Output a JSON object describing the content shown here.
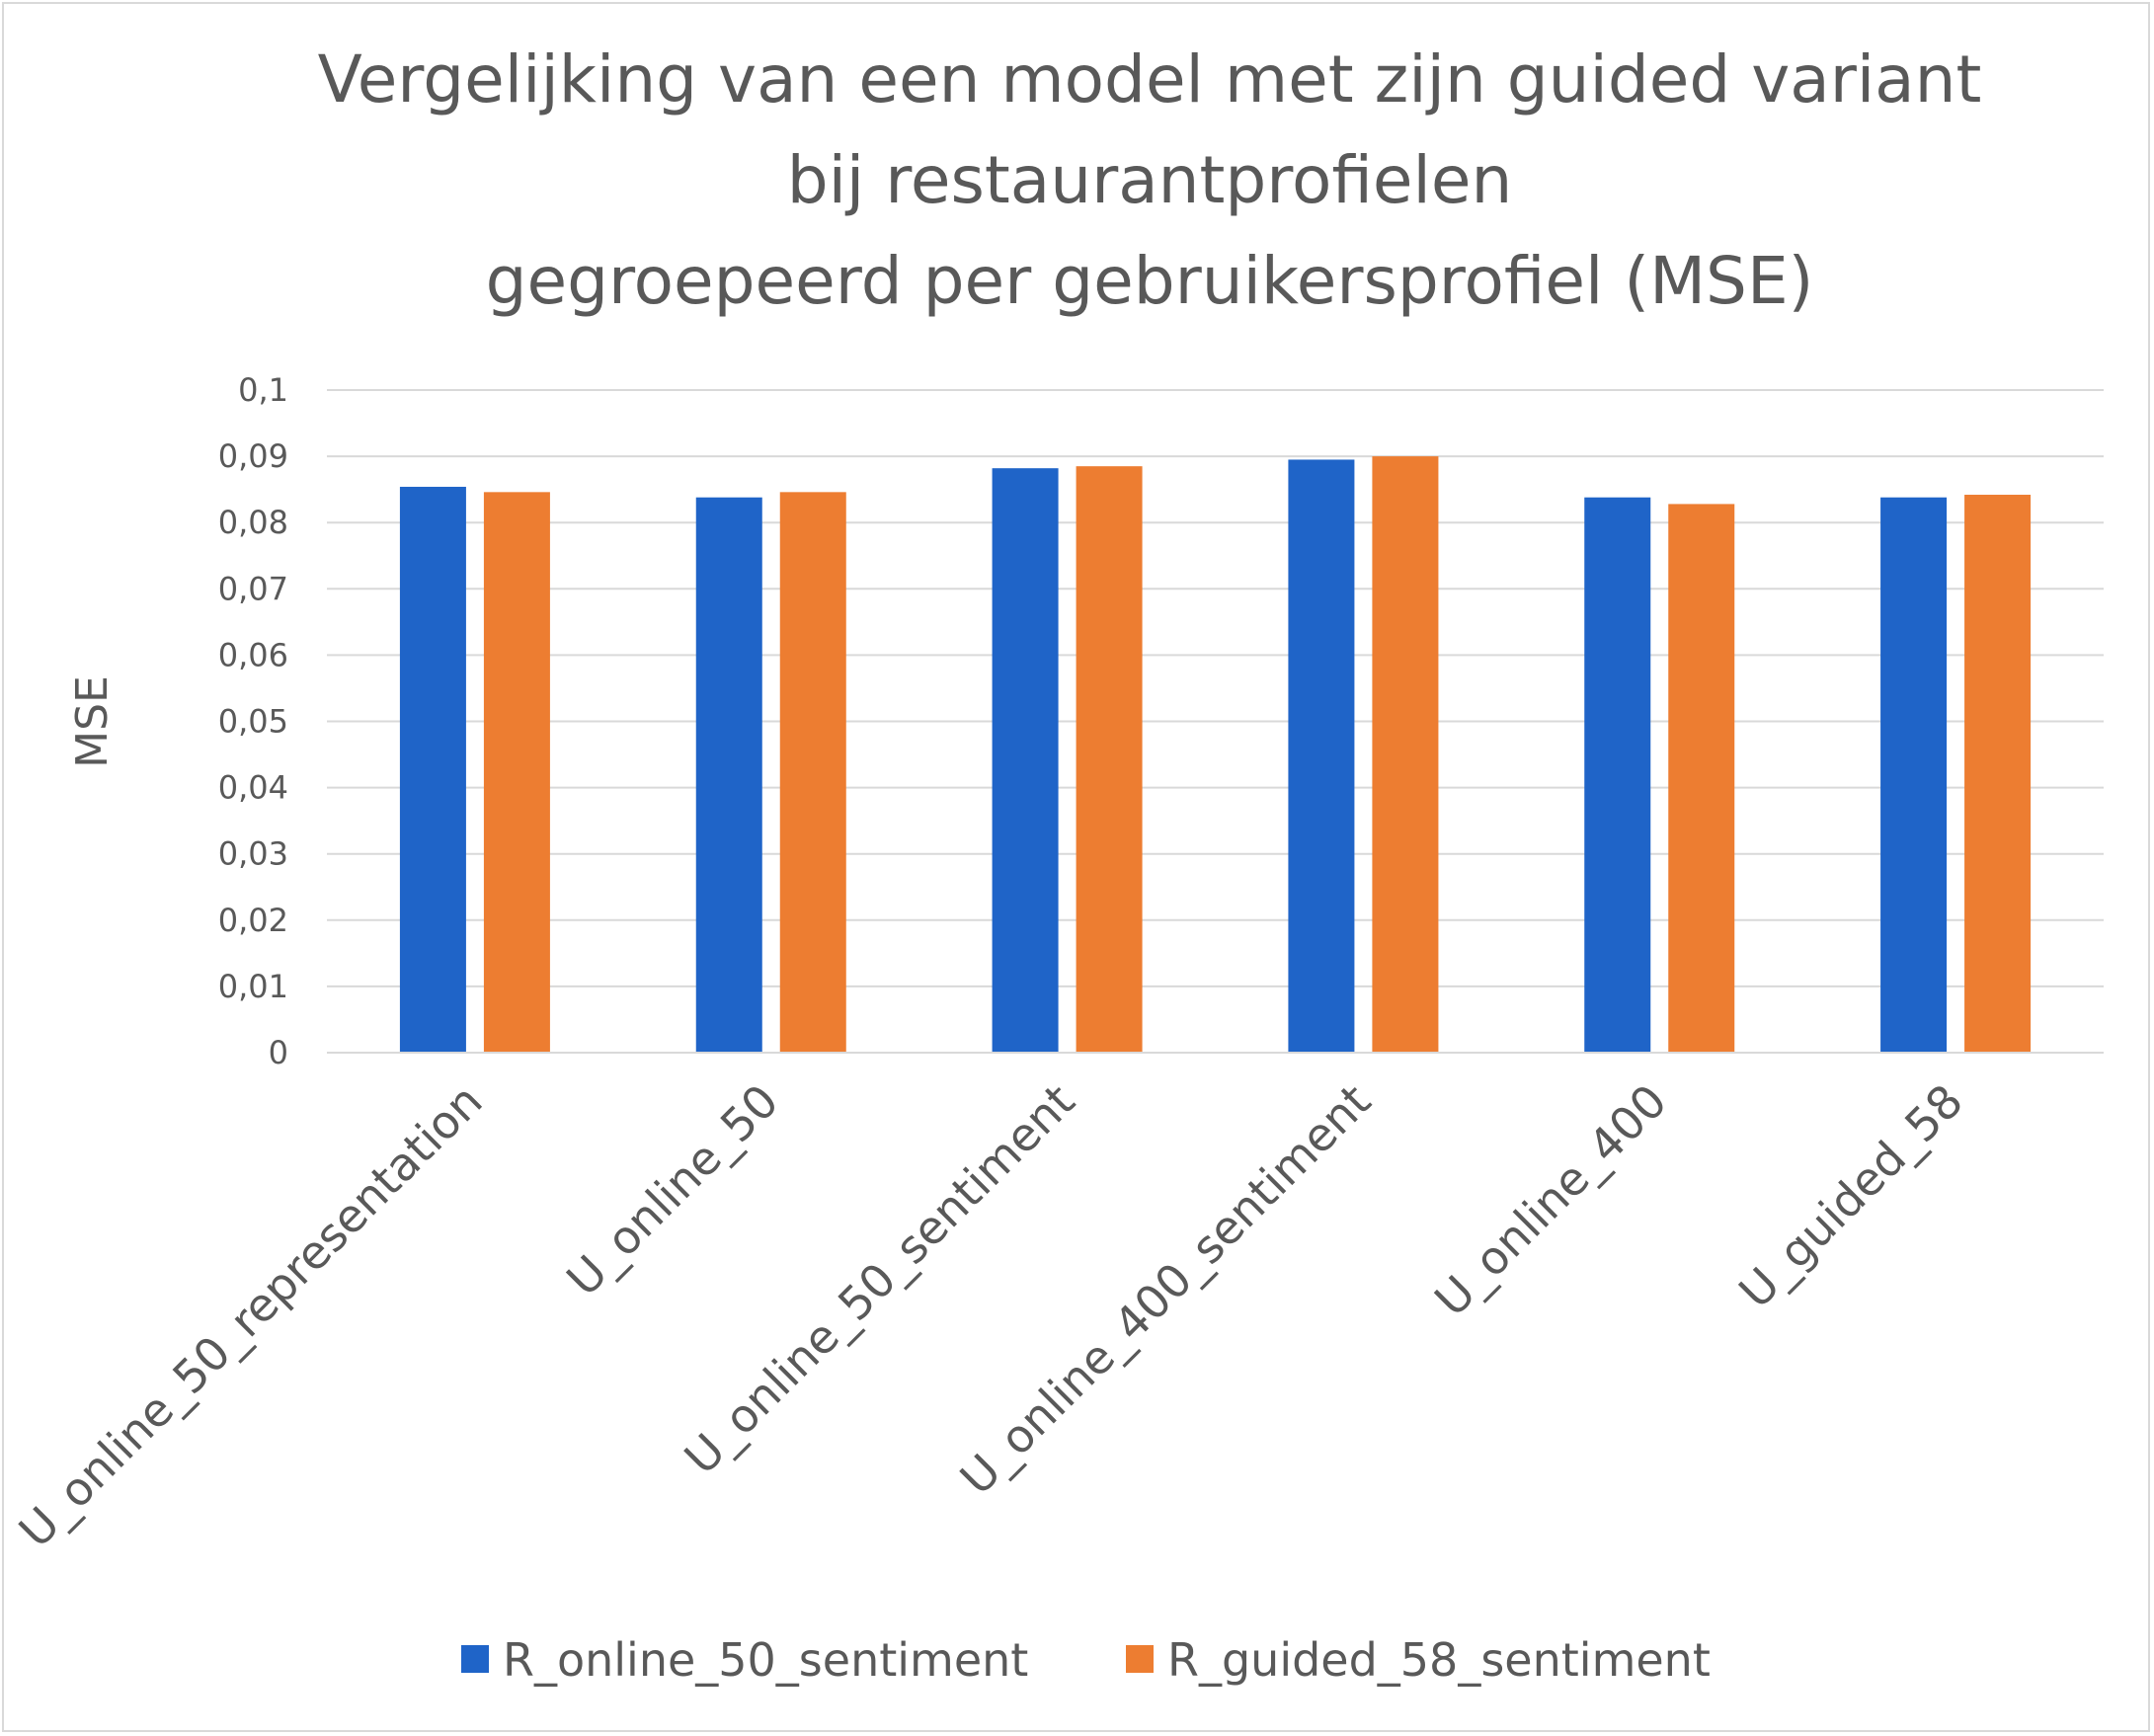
{
  "chart_data": {
    "type": "bar",
    "title": [
      "Vergelijking van een model met zijn guided variant",
      "bij restaurantprofielen",
      "gegroepeerd per gebruikersprofiel (MSE)"
    ],
    "xlabel": "",
    "ylabel": "MSE",
    "ylim": [
      0,
      0.1
    ],
    "yticks": [
      0,
      0.01,
      0.02,
      0.03,
      0.04,
      0.05,
      0.06,
      0.07,
      0.08,
      0.09,
      0.1
    ],
    "ytick_labels": [
      "0",
      "0,01",
      "0,02",
      "0,03",
      "0,04",
      "0,05",
      "0,06",
      "0,07",
      "0,08",
      "0,09",
      "0,1"
    ],
    "grid": true,
    "legend_position": "bottom",
    "categories": [
      "U_online_50_representation",
      "U_online_50",
      "U_online_50_sentiment",
      "U_online_400_sentiment",
      "U_online_400",
      "U_guided_58"
    ],
    "series": [
      {
        "name": "R_online_50_sentiment",
        "color": "#1f64c8",
        "values": [
          0.0854,
          0.0838,
          0.0882,
          0.0895,
          0.0838,
          0.0838
        ]
      },
      {
        "name": "R_guided_58_sentiment",
        "color": "#ed7d31",
        "values": [
          0.0846,
          0.0846,
          0.0885,
          0.09,
          0.0828,
          0.0842
        ]
      }
    ]
  }
}
